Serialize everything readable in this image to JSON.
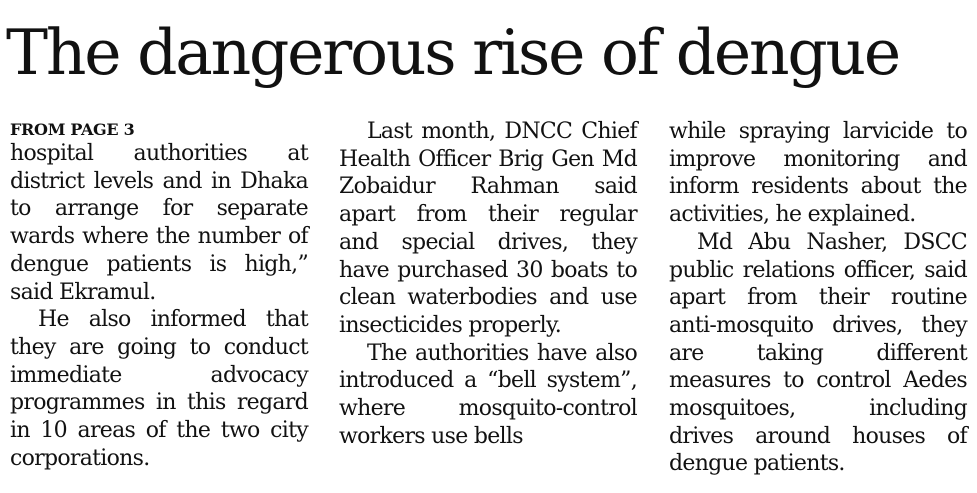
{
  "headline": "The dangerous rise of dengue",
  "kicker": "FROM PAGE 3",
  "columns": [
    {
      "paragraphs": [
        "hospital authorities at district levels and in Dhaka to arrange for separate wards where the number of dengue patients is high,” said Ekramul.",
        "He also informed that they are going to conduct immediate advocacy programmes in this regard in 10 areas of the two city corporations."
      ]
    },
    {
      "paragraphs": [
        "Last month, DNCC Chief Health Officer Brig Gen Md Zobaidur Rahman said apart from their regular and special drives, they have purchased 30 boats to clean waterbodies and use insecticides properly.",
        "The authorities have also introduced a “bell system”, where mosquito-control workers use bells"
      ]
    },
    {
      "paragraphs": [
        "while spraying larvicide to improve monitoring and inform residents about the activities, he explained.",
        "Md Abu Nasher, DSCC public relations officer, said apart from their routine anti-mosquito drives, they are taking different measures to control Aedes mosquitoes, including drives around houses of dengue patients."
      ]
    }
  ]
}
